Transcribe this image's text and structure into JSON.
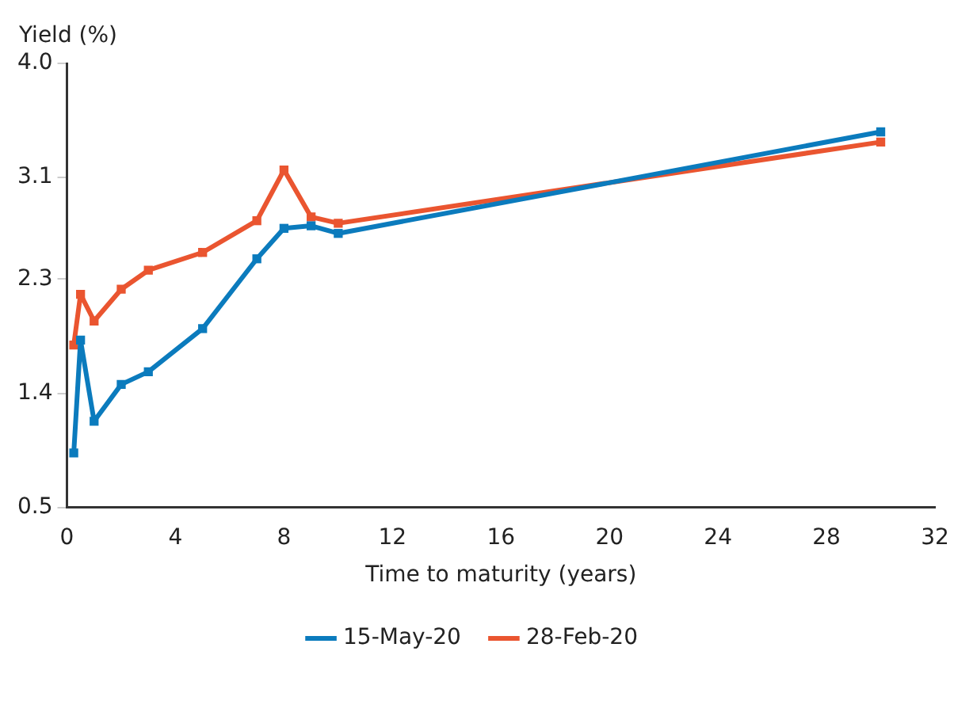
{
  "chart_data": {
    "type": "line",
    "ylabel": "Yield (%)",
    "xlabel": "Time to maturity (years)",
    "xlim": [
      0,
      32
    ],
    "xticks": [
      0,
      4,
      8,
      12,
      16,
      20,
      24,
      28,
      32
    ],
    "ylim": [
      0.5,
      4.0
    ],
    "yticks": [
      {
        "value": 0.5,
        "label": "0.5"
      },
      {
        "value": 1.4,
        "label": "1.4"
      },
      {
        "value": 2.3,
        "label": "2.3"
      },
      {
        "value": 3.1,
        "label": "3.1"
      },
      {
        "value": 4.0,
        "label": "4.0"
      }
    ],
    "x": [
      0.25,
      0.5,
      1,
      2,
      3,
      5,
      7,
      8,
      9,
      10,
      30
    ],
    "series": [
      {
        "name": "15-May-20",
        "color": "#0b7bbd",
        "values": [
          0.93,
          1.82,
          1.18,
          1.47,
          1.57,
          1.91,
          2.46,
          2.7,
          2.72,
          2.66,
          3.46
        ]
      },
      {
        "name": "28-Feb-20",
        "color": "#ea5530",
        "values": [
          1.78,
          2.18,
          1.97,
          2.22,
          2.37,
          2.51,
          2.76,
          3.16,
          2.79,
          2.74,
          3.38
        ]
      }
    ],
    "marker": "square",
    "line_style": "solid",
    "grid": false,
    "legend": "bottom"
  }
}
